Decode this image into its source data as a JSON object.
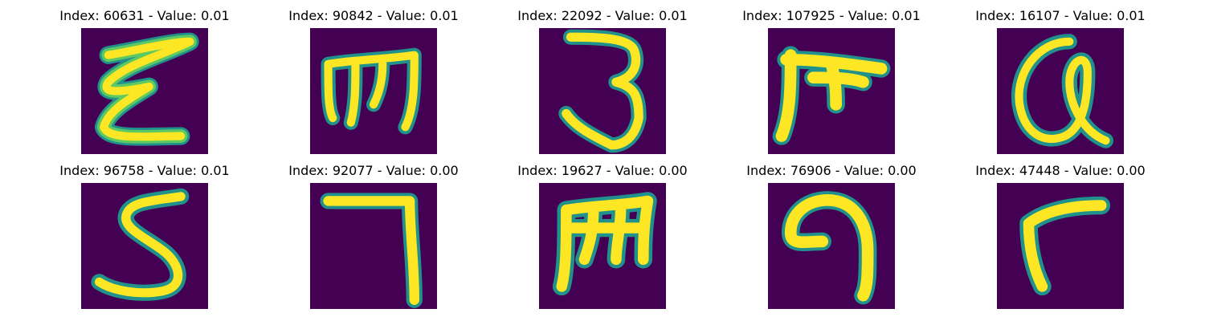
{
  "colors": {
    "background": "#440154",
    "stroke_core": "#fde725",
    "stroke_mid": "#5ec962",
    "stroke_edge": "#21918c"
  },
  "panels": [
    {
      "title": "Index: 60631 - Value: 0.01",
      "glyph": "epsilon-like"
    },
    {
      "title": "Index: 90842 - Value: 0.01",
      "glyph": "m-like"
    },
    {
      "title": "Index: 22092 - Value: 0.01",
      "glyph": "three-like"
    },
    {
      "title": "Index: 107925 - Value: 0.01",
      "glyph": "pi-like"
    },
    {
      "title": "Index: 16107 - Value: 0.01",
      "glyph": "alpha-like"
    },
    {
      "title": "Index: 96758 - Value: 0.01",
      "glyph": "five-like"
    },
    {
      "title": "Index: 92077 - Value: 0.00",
      "glyph": "seven-like"
    },
    {
      "title": "Index: 19627 - Value: 0.00",
      "glyph": "m-like"
    },
    {
      "title": "Index: 76906 - Value: 0.00",
      "glyph": "nine-like"
    },
    {
      "title": "Index: 47448 - Value: 0.00",
      "glyph": "r-like"
    }
  ]
}
